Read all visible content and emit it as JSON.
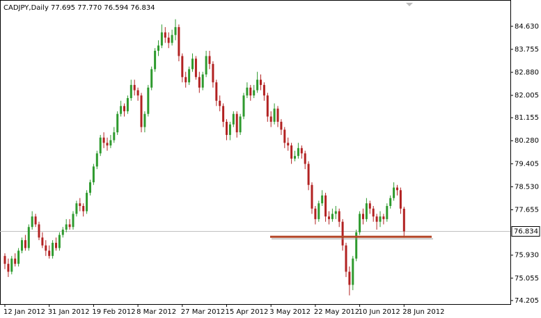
{
  "chart_data": {
    "type": "candlestick",
    "title": "CADJPY,Daily  77.695 77.770 76.594 76.834",
    "up_color": "#2e9a2e",
    "down_color": "#b22222",
    "ylim": [
      74.07,
      85.63
    ],
    "yticks": [
      {
        "value": 84.63,
        "label": "84.630"
      },
      83.755,
      {
        "value": 82.88,
        "label": "82.880"
      },
      82.005,
      81.155,
      {
        "value": 80.28,
        "label": "80.280"
      },
      79.405,
      {
        "value": 78.53,
        "label": "78.530"
      },
      77.655,
      {
        "value": 75.93,
        "label": "75.930"
      },
      75.055,
      74.205
    ],
    "current_price": 76.834,
    "support_level": 76.63,
    "support_color": "#b5482a",
    "categories": [
      "12 Jan 2012",
      null,
      null,
      null,
      null,
      null,
      null,
      null,
      null,
      null,
      null,
      null,
      null,
      "31 Jan 2012",
      null,
      null,
      null,
      null,
      null,
      null,
      null,
      null,
      null,
      null,
      null,
      null,
      "19 Feb 2012",
      null,
      null,
      null,
      null,
      null,
      null,
      null,
      null,
      null,
      null,
      null,
      null,
      "8 Mar 2012",
      null,
      null,
      null,
      null,
      null,
      null,
      null,
      null,
      null,
      null,
      null,
      null,
      "27 Mar 2012",
      null,
      null,
      null,
      null,
      null,
      null,
      null,
      null,
      null,
      null,
      null,
      null,
      "15 Apr 2012",
      null,
      null,
      null,
      null,
      null,
      null,
      null,
      null,
      null,
      null,
      null,
      null,
      "3 May 2012",
      null,
      null,
      null,
      null,
      null,
      null,
      null,
      null,
      null,
      null,
      null,
      null,
      "22 May 2012",
      null,
      null,
      null,
      null,
      null,
      null,
      null,
      null,
      null,
      null,
      null,
      null,
      "10 Jun 2012",
      null,
      null,
      null,
      null,
      null,
      null,
      null,
      null,
      null,
      null,
      null,
      null,
      "28 Jun 2012"
    ],
    "ohlc": [
      [
        75.9,
        76.0,
        75.4,
        75.6
      ],
      [
        75.6,
        75.8,
        75.1,
        75.3
      ],
      [
        75.3,
        75.9,
        75.2,
        75.8
      ],
      [
        75.8,
        76.0,
        75.5,
        75.6
      ],
      [
        75.6,
        76.2,
        75.5,
        76.1
      ],
      [
        76.1,
        76.6,
        76.0,
        76.5
      ],
      [
        76.5,
        76.7,
        76.1,
        76.2
      ],
      [
        76.2,
        77.1,
        76.1,
        77.0
      ],
      [
        77.0,
        77.6,
        76.9,
        77.4
      ],
      [
        77.4,
        77.5,
        77.0,
        77.1
      ],
      [
        77.1,
        77.2,
        76.5,
        76.6
      ],
      [
        76.6,
        76.8,
        76.2,
        76.3
      ],
      [
        76.3,
        76.5,
        75.9,
        76.1
      ],
      [
        76.1,
        76.3,
        75.8,
        75.9
      ],
      [
        75.9,
        76.5,
        75.8,
        76.4
      ],
      [
        76.4,
        76.6,
        76.1,
        76.2
      ],
      [
        76.2,
        76.8,
        76.1,
        76.7
      ],
      [
        76.7,
        77.0,
        76.6,
        76.9
      ],
      [
        76.9,
        77.3,
        76.8,
        77.1
      ],
      [
        77.1,
        77.3,
        76.9,
        77.0
      ],
      [
        77.0,
        77.6,
        76.9,
        77.5
      ],
      [
        77.5,
        78.0,
        77.4,
        77.9
      ],
      [
        77.9,
        78.1,
        77.6,
        77.8
      ],
      [
        77.8,
        77.9,
        77.4,
        77.6
      ],
      [
        77.6,
        78.4,
        77.5,
        78.3
      ],
      [
        78.3,
        78.8,
        78.2,
        78.7
      ],
      [
        78.7,
        79.4,
        78.6,
        79.3
      ],
      [
        79.3,
        79.9,
        79.2,
        79.8
      ],
      [
        79.8,
        80.5,
        79.7,
        80.4
      ],
      [
        80.4,
        80.6,
        80.0,
        80.2
      ],
      [
        80.2,
        80.4,
        79.9,
        80.1
      ],
      [
        80.1,
        80.5,
        80.0,
        80.3
      ],
      [
        80.3,
        80.8,
        80.2,
        80.6
      ],
      [
        80.6,
        81.4,
        80.5,
        81.3
      ],
      [
        81.3,
        81.8,
        81.2,
        81.6
      ],
      [
        81.6,
        81.7,
        81.2,
        81.4
      ],
      [
        81.4,
        82.0,
        81.3,
        81.9
      ],
      [
        81.9,
        82.6,
        81.8,
        82.4
      ],
      [
        82.4,
        82.6,
        82.0,
        82.2
      ],
      [
        82.2,
        82.3,
        81.8,
        82.0
      ],
      [
        82.0,
        82.1,
        80.6,
        80.8
      ],
      [
        80.8,
        81.4,
        80.6,
        81.3
      ],
      [
        81.3,
        82.4,
        81.2,
        82.3
      ],
      [
        82.3,
        83.1,
        82.2,
        83.0
      ],
      [
        83.0,
        83.8,
        82.9,
        83.7
      ],
      [
        83.7,
        84.1,
        83.5,
        83.9
      ],
      [
        83.9,
        84.7,
        83.8,
        84.4
      ],
      [
        84.4,
        84.6,
        84.0,
        84.2
      ],
      [
        84.2,
        84.4,
        83.8,
        84.0
      ],
      [
        84.0,
        84.5,
        83.9,
        84.3
      ],
      [
        84.3,
        84.9,
        84.1,
        84.6
      ],
      [
        84.6,
        84.7,
        83.3,
        83.5
      ],
      [
        83.5,
        83.6,
        82.5,
        82.7
      ],
      [
        82.7,
        82.9,
        82.3,
        82.5
      ],
      [
        82.5,
        83.1,
        82.4,
        83.0
      ],
      [
        83.0,
        83.6,
        82.9,
        83.4
      ],
      [
        83.4,
        83.5,
        82.6,
        82.7
      ],
      [
        82.7,
        82.9,
        82.1,
        82.3
      ],
      [
        82.3,
        82.9,
        82.2,
        82.8
      ],
      [
        82.8,
        83.7,
        82.7,
        83.5
      ],
      [
        83.5,
        83.7,
        83.0,
        83.2
      ],
      [
        83.2,
        83.3,
        82.3,
        82.5
      ],
      [
        82.5,
        82.6,
        81.6,
        81.8
      ],
      [
        81.8,
        82.0,
        81.4,
        81.6
      ],
      [
        81.6,
        81.7,
        80.8,
        81.0
      ],
      [
        81.0,
        81.1,
        80.3,
        80.5
      ],
      [
        80.5,
        81.0,
        80.3,
        80.9
      ],
      [
        80.9,
        81.4,
        80.8,
        81.3
      ],
      [
        81.3,
        81.4,
        80.4,
        80.6
      ],
      [
        80.6,
        81.3,
        80.5,
        81.2
      ],
      [
        81.2,
        82.1,
        81.1,
        82.0
      ],
      [
        82.0,
        82.5,
        81.9,
        82.3
      ],
      [
        82.3,
        82.4,
        81.8,
        82.0
      ],
      [
        82.0,
        82.4,
        81.9,
        82.2
      ],
      [
        82.2,
        82.9,
        82.1,
        82.6
      ],
      [
        82.6,
        82.8,
        82.2,
        82.4
      ],
      [
        82.4,
        82.5,
        81.8,
        82.0
      ],
      [
        82.0,
        82.1,
        81.0,
        81.2
      ],
      [
        81.2,
        81.4,
        80.8,
        81.0
      ],
      [
        81.0,
        81.7,
        80.9,
        81.5
      ],
      [
        81.5,
        81.6,
        80.8,
        81.0
      ],
      [
        81.0,
        81.1,
        80.5,
        80.7
      ],
      [
        80.7,
        80.8,
        80.0,
        80.2
      ],
      [
        80.2,
        80.4,
        79.9,
        80.1
      ],
      [
        80.1,
        80.2,
        79.4,
        79.6
      ],
      [
        79.6,
        79.9,
        79.5,
        79.7
      ],
      [
        79.7,
        80.2,
        79.6,
        80.0
      ],
      [
        80.0,
        80.1,
        79.6,
        79.8
      ],
      [
        79.8,
        79.9,
        79.2,
        79.4
      ],
      [
        79.4,
        79.5,
        78.4,
        78.6
      ],
      [
        78.6,
        78.7,
        77.5,
        77.7
      ],
      [
        77.7,
        77.8,
        77.1,
        77.3
      ],
      [
        77.3,
        78.0,
        77.2,
        77.9
      ],
      [
        77.9,
        78.4,
        77.8,
        78.2
      ],
      [
        78.2,
        78.3,
        77.2,
        77.4
      ],
      [
        77.4,
        77.6,
        77.1,
        77.3
      ],
      [
        77.3,
        77.7,
        77.2,
        77.5
      ],
      [
        77.5,
        77.8,
        77.3,
        77.6
      ],
      [
        77.6,
        77.7,
        77.0,
        77.2
      ],
      [
        77.2,
        77.3,
        76.1,
        76.3
      ],
      [
        76.3,
        76.4,
        75.1,
        75.3
      ],
      [
        75.3,
        75.5,
        74.4,
        74.8
      ],
      [
        74.8,
        75.9,
        74.6,
        75.8
      ],
      [
        75.8,
        76.9,
        75.7,
        76.8
      ],
      [
        76.8,
        77.6,
        76.7,
        77.5
      ],
      [
        77.5,
        77.7,
        77.1,
        77.3
      ],
      [
        77.3,
        78.1,
        77.2,
        77.9
      ],
      [
        77.9,
        78.0,
        77.5,
        77.7
      ],
      [
        77.7,
        77.8,
        77.2,
        77.4
      ],
      [
        77.4,
        77.5,
        76.9,
        77.2
      ],
      [
        77.2,
        77.6,
        77.0,
        77.4
      ],
      [
        77.4,
        77.5,
        77.1,
        77.3
      ],
      [
        77.3,
        77.9,
        77.2,
        77.8
      ],
      [
        77.8,
        78.2,
        77.7,
        78.1
      ],
      [
        78.1,
        78.7,
        78.0,
        78.5
      ],
      [
        78.5,
        78.6,
        78.2,
        78.4
      ],
      [
        78.4,
        78.5,
        77.5,
        77.7
      ],
      [
        77.695,
        77.77,
        76.594,
        76.834
      ]
    ]
  }
}
